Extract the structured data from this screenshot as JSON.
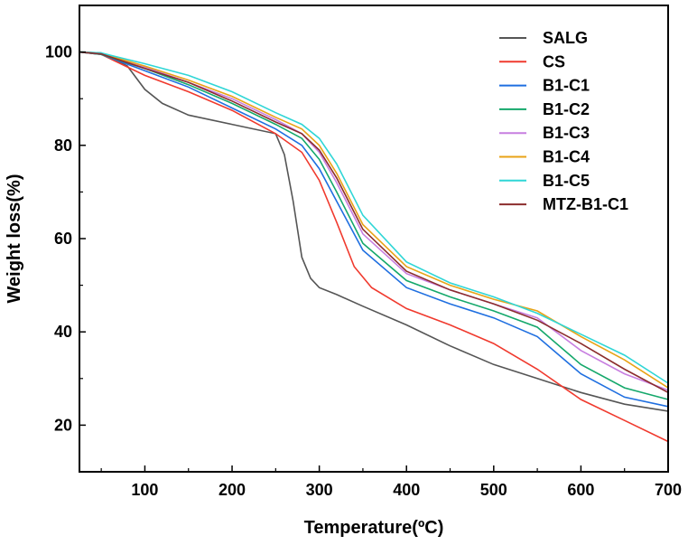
{
  "chart_data": {
    "type": "line",
    "title": "",
    "xlabel": "Temperature(ºC)",
    "ylabel": "Weight loss(%)",
    "xlim": [
      25,
      700
    ],
    "ylim": [
      10,
      110
    ],
    "xticks": [
      100,
      200,
      300,
      400,
      500,
      600,
      700
    ],
    "yticks": [
      20,
      40,
      60,
      80,
      100
    ],
    "grid": false,
    "legend": "top-right",
    "series": [
      {
        "name": "SALG",
        "color": "#555555",
        "x": [
          25,
          50,
          80,
          100,
          120,
          150,
          200,
          250,
          260,
          270,
          280,
          290,
          300,
          320,
          350,
          400,
          450,
          500,
          550,
          600,
          650,
          700
        ],
        "y": [
          100,
          99.8,
          97,
          92,
          89,
          86.5,
          84.5,
          82.5,
          78,
          68,
          56,
          51.5,
          49.5,
          48,
          45.5,
          41.5,
          37,
          33,
          30,
          27,
          24.5,
          23
        ]
      },
      {
        "name": "CS",
        "color": "#f03a2e",
        "x": [
          25,
          50,
          100,
          150,
          200,
          250,
          280,
          300,
          320,
          340,
          360,
          400,
          450,
          500,
          550,
          600,
          650,
          700
        ],
        "y": [
          100,
          99.5,
          95,
          91.5,
          87.5,
          82.5,
          78.5,
          72.5,
          63.5,
          54,
          49.5,
          45,
          41.5,
          37.5,
          32,
          25.5,
          21,
          16.5
        ]
      },
      {
        "name": "B1-C1",
        "color": "#1f6fe0",
        "x": [
          25,
          50,
          100,
          150,
          200,
          250,
          280,
          300,
          320,
          350,
          400,
          450,
          500,
          550,
          600,
          650,
          700
        ],
        "y": [
          100,
          99.5,
          96,
          92.5,
          88,
          83.5,
          80,
          75,
          68,
          57.5,
          49.5,
          46,
          43,
          39,
          31,
          26,
          24
        ]
      },
      {
        "name": "B1-C2",
        "color": "#15a86b",
        "x": [
          25,
          50,
          100,
          150,
          200,
          250,
          280,
          300,
          320,
          350,
          400,
          450,
          500,
          550,
          600,
          650,
          700
        ],
        "y": [
          100,
          99.5,
          96.5,
          93,
          89,
          84.5,
          81.5,
          77,
          70,
          59,
          51,
          47.5,
          44.5,
          41,
          33,
          28,
          25.5
        ]
      },
      {
        "name": "B1-C3",
        "color": "#c77ee0",
        "x": [
          25,
          50,
          100,
          150,
          200,
          250,
          280,
          300,
          320,
          350,
          400,
          450,
          500,
          550,
          600,
          650,
          700
        ],
        "y": [
          100,
          99.6,
          96.8,
          93.5,
          90,
          85.5,
          82.5,
          78.5,
          72,
          61,
          52.5,
          49,
          46,
          43,
          36,
          31,
          27.5
        ]
      },
      {
        "name": "B1-C4",
        "color": "#e8a317",
        "x": [
          25,
          50,
          100,
          150,
          200,
          250,
          280,
          300,
          320,
          350,
          400,
          450,
          500,
          550,
          600,
          650,
          700
        ],
        "y": [
          100,
          99.7,
          97,
          94,
          90.5,
          86,
          83.5,
          80,
          74,
          63,
          54,
          50,
          47,
          44.5,
          39,
          34,
          28
        ]
      },
      {
        "name": "B1-C5",
        "color": "#2fd6d6",
        "x": [
          25,
          50,
          100,
          150,
          200,
          250,
          280,
          300,
          320,
          350,
          400,
          450,
          500,
          550,
          600,
          650,
          700
        ],
        "y": [
          100,
          99.8,
          97.5,
          95,
          91.5,
          87,
          84.5,
          81.5,
          76,
          65,
          55,
          50.5,
          47.5,
          44,
          39.5,
          35,
          29
        ]
      },
      {
        "name": "MTZ-B1-C1",
        "color": "#8b2d2d",
        "x": [
          25,
          50,
          100,
          150,
          200,
          250,
          280,
          300,
          320,
          350,
          400,
          450,
          500,
          550,
          600,
          650,
          700
        ],
        "y": [
          100,
          99.6,
          96.5,
          93.5,
          89.5,
          85,
          82.5,
          79,
          73,
          62,
          53,
          49,
          46,
          42.5,
          37.5,
          32,
          27
        ]
      }
    ]
  }
}
